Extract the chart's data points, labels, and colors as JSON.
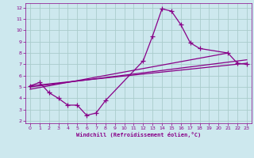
{
  "title": "",
  "xlabel": "Windchill (Refroidissement éolien,°C)",
  "bg_color": "#cde8ee",
  "line_color": "#880088",
  "grid_color": "#aacccc",
  "xlim": [
    -0.5,
    23.5
  ],
  "ylim": [
    1.8,
    12.4
  ],
  "xticks": [
    0,
    1,
    2,
    3,
    4,
    5,
    6,
    7,
    8,
    9,
    10,
    11,
    12,
    13,
    14,
    15,
    16,
    17,
    18,
    19,
    20,
    21,
    22,
    23
  ],
  "yticks": [
    2,
    3,
    4,
    5,
    6,
    7,
    8,
    9,
    10,
    11,
    12
  ],
  "curve_x": [
    0,
    1,
    2,
    3,
    4,
    5,
    6,
    7,
    8,
    12,
    13,
    14,
    15,
    16,
    17,
    18,
    21,
    22,
    23
  ],
  "curve_y": [
    5.1,
    5.4,
    4.5,
    4.0,
    3.4,
    3.4,
    2.5,
    2.7,
    3.8,
    7.3,
    9.5,
    11.9,
    11.7,
    10.5,
    8.9,
    8.4,
    8.0,
    7.1,
    7.0
  ],
  "line1_x": [
    0,
    23
  ],
  "line1_y": [
    5.1,
    7.1
  ],
  "line2_x": [
    0,
    23
  ],
  "line2_y": [
    5.0,
    7.4
  ],
  "line3_x": [
    0,
    21
  ],
  "line3_y": [
    4.8,
    8.0
  ]
}
